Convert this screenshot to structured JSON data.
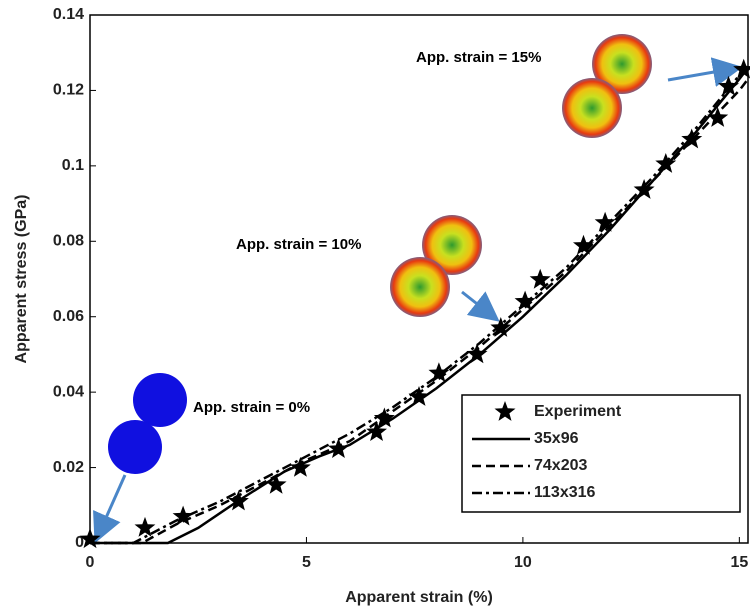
{
  "chart_data": {
    "type": "line",
    "x_label": "Apparent strain (%)",
    "y_label": "Apparent stress (GPa)",
    "xlim": [
      0,
      15.2
    ],
    "ylim": [
      0,
      0.14
    ],
    "xticks": [
      0,
      5,
      10,
      15
    ],
    "yticks": [
      0,
      0.02,
      0.04,
      0.06,
      0.08,
      0.1,
      0.12,
      0.14
    ],
    "annotations": [
      "App. strain = 0%",
      "App. strain = 10%",
      "App. strain = 15%"
    ],
    "series": [
      {
        "name": "Experiment",
        "color": "#000000",
        "style": "star",
        "x": [
          0,
          1.27,
          2.15,
          3.43,
          4.3,
          4.86,
          5.74,
          6.62,
          6.8,
          7.6,
          8.06,
          8.94,
          9.49,
          10.05,
          10.4,
          11.4,
          11.9,
          12.8,
          13.3,
          13.9,
          14.5,
          14.75,
          15.1
        ],
        "values": [
          0.001,
          0.004,
          0.007,
          0.011,
          0.0154,
          0.0199,
          0.0249,
          0.0294,
          0.033,
          0.0387,
          0.045,
          0.05,
          0.057,
          0.064,
          0.0698,
          0.0788,
          0.0849,
          0.0936,
          0.1005,
          0.107,
          0.1127,
          0.121,
          0.1255
        ]
      },
      {
        "name": "35x96",
        "color": "#000000",
        "style": "solid",
        "x": [
          0,
          1.8,
          2.5,
          3.4,
          4.5,
          5.3,
          6,
          7,
          8,
          9,
          10,
          11,
          12,
          13,
          14,
          15,
          15.2
        ],
        "values": [
          0,
          0,
          0.004,
          0.011,
          0.019,
          0.023,
          0.026,
          0.033,
          0.041,
          0.05,
          0.06,
          0.071,
          0.083,
          0.096,
          0.109,
          0.123,
          0.126
        ]
      },
      {
        "name": "74x203",
        "color": "#000000",
        "style": "dashed",
        "x": [
          0,
          1.2,
          2,
          3,
          4,
          5,
          6,
          7,
          8,
          9,
          10,
          11,
          12,
          13,
          14,
          15,
          15.2
        ],
        "values": [
          0,
          0,
          0.005,
          0.01,
          0.016,
          0.022,
          0.027,
          0.035,
          0.043,
          0.052,
          0.062,
          0.072,
          0.084,
          0.096,
          0.108,
          0.12,
          0.123
        ]
      },
      {
        "name": "113x316",
        "color": "#000000",
        "style": "dashdot",
        "x": [
          0,
          1,
          2,
          3,
          4,
          5,
          6,
          7,
          8,
          9,
          10,
          11,
          12,
          13,
          14,
          15
        ],
        "values": [
          0,
          0,
          0.006,
          0.011,
          0.017,
          0.023,
          0.029,
          0.036,
          0.044,
          0.053,
          0.063,
          0.073,
          0.085,
          0.097,
          0.11,
          0.124
        ]
      }
    ]
  }
}
